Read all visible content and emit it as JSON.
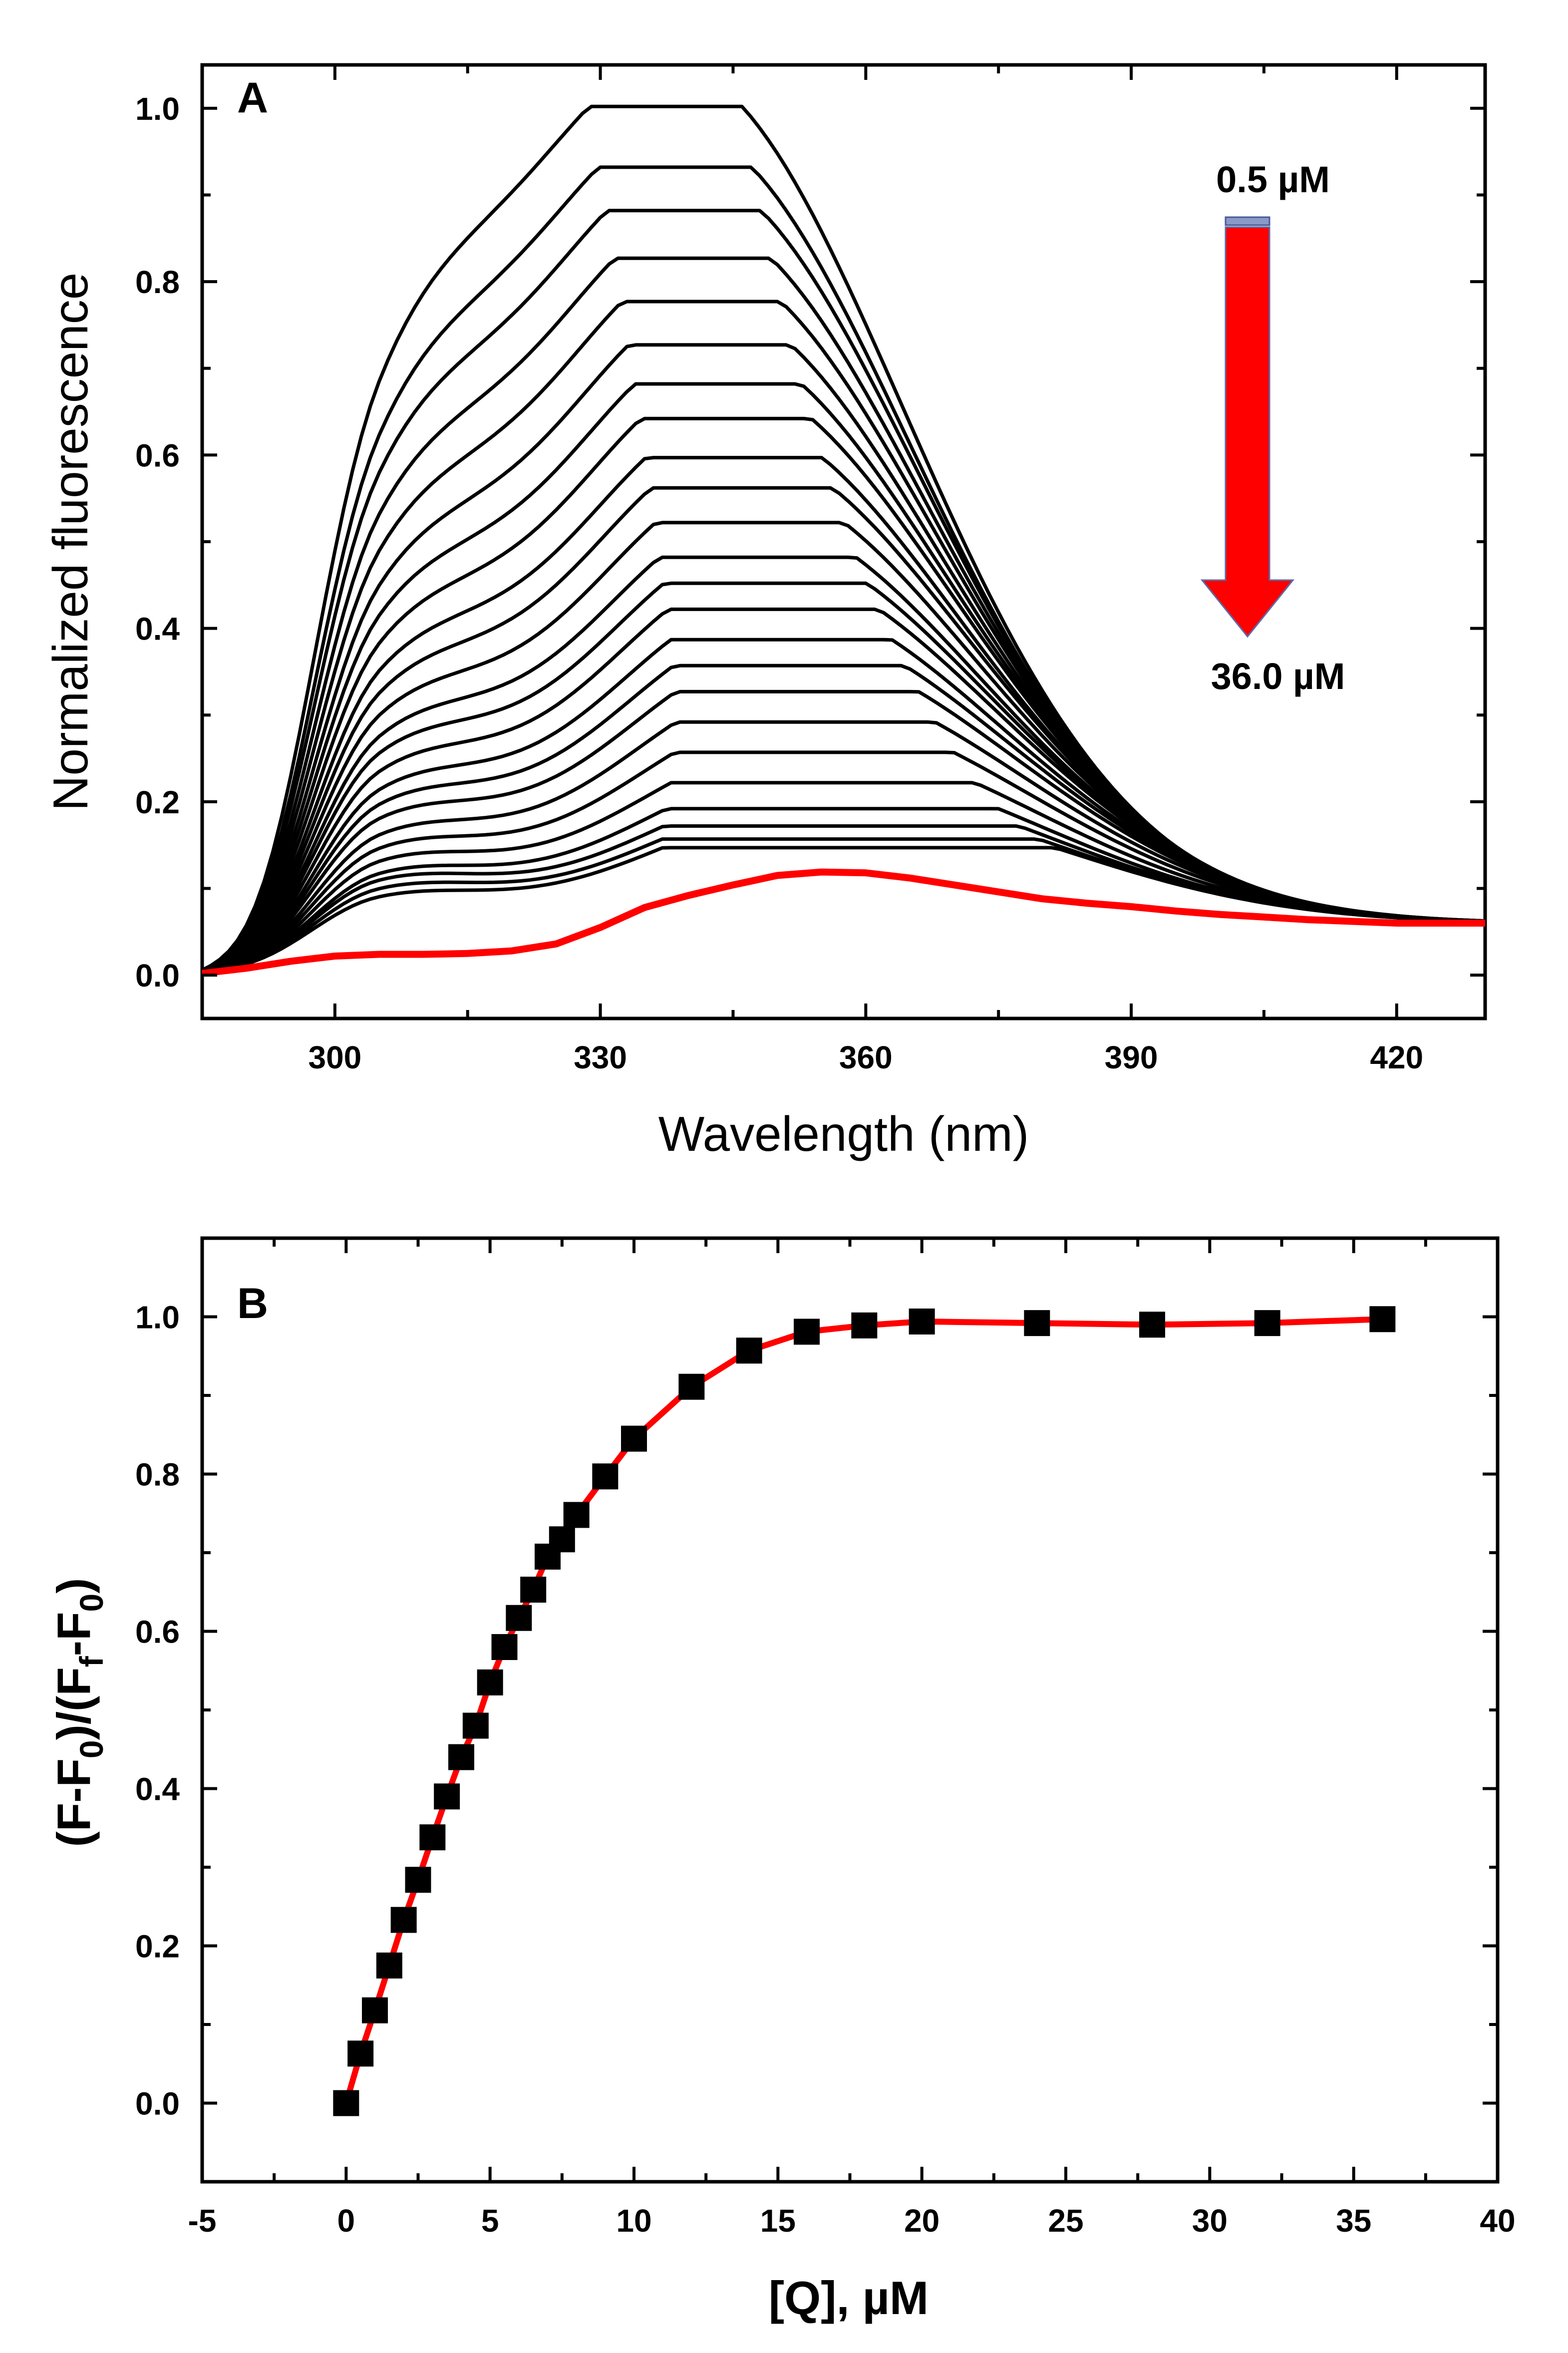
{
  "chart_data": [
    {
      "panel": "A",
      "type": "line",
      "panel_label": "A",
      "xlabel": "Wavelength (nm)",
      "ylabel": "Normalized fluorescence",
      "xlim": [
        285,
        430
      ],
      "ylim": [
        -0.05,
        1.05
      ],
      "xticks": [
        "300",
        "330",
        "360",
        "390",
        "420"
      ],
      "yticks": [
        "0.0",
        "0.2",
        "0.4",
        "0.6",
        "0.8",
        "1.0"
      ],
      "peak_values": [
        1.0,
        0.93,
        0.88,
        0.825,
        0.775,
        0.725,
        0.68,
        0.64,
        0.595,
        0.56,
        0.52,
        0.48,
        0.45,
        0.42,
        0.385,
        0.355,
        0.325,
        0.29,
        0.255,
        0.22,
        0.19,
        0.17,
        0.155,
        0.145
      ],
      "shoulder_values": [
        0.69,
        0.64,
        0.61,
        0.57,
        0.535,
        0.5,
        0.47,
        0.44,
        0.41,
        0.385,
        0.36,
        0.335,
        0.315,
        0.29,
        0.265,
        0.245,
        0.225,
        0.2,
        0.18,
        0.16,
        0.14,
        0.13,
        0.115,
        0.1
      ],
      "final_series": {
        "label": "36.0 µM",
        "color": "#ff0000",
        "x": [
          285,
          290,
          295,
          300,
          305,
          310,
          315,
          320,
          325,
          330,
          335,
          340,
          345,
          350,
          355,
          360,
          365,
          370,
          375,
          380,
          385,
          390,
          395,
          400,
          405,
          410,
          415,
          420,
          425,
          430
        ],
        "y": [
          0.002,
          0.008,
          0.016,
          0.022,
          0.024,
          0.024,
          0.025,
          0.028,
          0.036,
          0.055,
          0.078,
          0.092,
          0.104,
          0.115,
          0.119,
          0.118,
          0.112,
          0.104,
          0.096,
          0.088,
          0.083,
          0.079,
          0.074,
          0.07,
          0.067,
          0.064,
          0.062,
          0.06,
          0.06,
          0.06
        ]
      },
      "annotations": {
        "start_label": "0.5 µM",
        "end_label": "36.0 µM",
        "arrow_color": "#ff0000"
      }
    },
    {
      "panel": "B",
      "type": "scatter",
      "panel_label": "B",
      "xlabel": "[Q], µM",
      "ylabel": "(F-F₀)/(F_f-F₀)",
      "ylabel_parts": [
        "(F-F",
        "0",
        ")/(F",
        "f",
        "-F",
        "0",
        ")"
      ],
      "xlim": [
        -5,
        40
      ],
      "ylim": [
        -0.1,
        1.1
      ],
      "xticks": [
        "-5",
        "0",
        "5",
        "10",
        "15",
        "20",
        "25",
        "30",
        "35",
        "40"
      ],
      "yticks": [
        "0.0",
        "0.2",
        "0.4",
        "0.6",
        "0.8",
        "1.0"
      ],
      "line_color": "#ff0000",
      "marker_color": "#000000",
      "x": [
        0,
        0.5,
        1,
        1.5,
        2,
        2.5,
        3,
        3.5,
        4,
        4.5,
        5,
        5.5,
        6,
        6.5,
        7,
        7.5,
        8,
        9,
        10,
        12,
        14,
        16,
        18,
        20,
        24,
        28,
        32,
        36
      ],
      "y": [
        0.0,
        0.063,
        0.118,
        0.175,
        0.233,
        0.284,
        0.338,
        0.39,
        0.44,
        0.48,
        0.535,
        0.58,
        0.617,
        0.653,
        0.695,
        0.717,
        0.748,
        0.797,
        0.845,
        0.911,
        0.957,
        0.981,
        0.989,
        0.994,
        0.992,
        0.99,
        0.992,
        0.997
      ]
    }
  ]
}
